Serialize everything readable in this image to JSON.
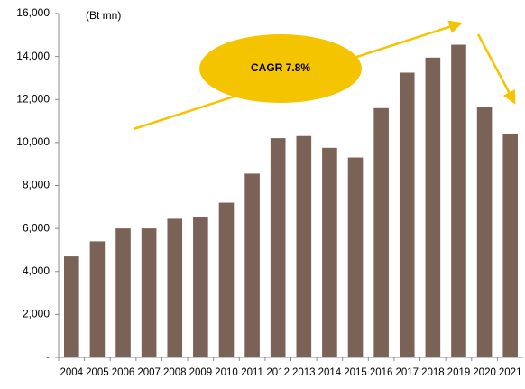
{
  "chart_data": {
    "type": "bar",
    "unit_label": "(Bt mn)",
    "annotation": "CAGR 7.8%",
    "categories": [
      "2004",
      "2005",
      "2006",
      "2007",
      "2008",
      "2009",
      "2010",
      "2011",
      "2012",
      "2013",
      "2014",
      "2015",
      "2016",
      "2017",
      "2018",
      "2019",
      "2020",
      "2021"
    ],
    "values": [
      4700,
      5400,
      6000,
      6000,
      6450,
      6550,
      7200,
      8550,
      10200,
      10300,
      9750,
      9300,
      11600,
      13250,
      13950,
      14550,
      11650,
      10400
    ],
    "color": "#7b6257",
    "ylim": [
      0,
      16000
    ],
    "yticks": [
      {
        "value": 0,
        "label": "-"
      },
      {
        "value": 2000,
        "label": "2,000"
      },
      {
        "value": 4000,
        "label": "4,000"
      },
      {
        "value": 6000,
        "label": "6,000"
      },
      {
        "value": 8000,
        "label": "8,000"
      },
      {
        "value": 10000,
        "label": "10,000"
      },
      {
        "value": 12000,
        "label": "12,000"
      },
      {
        "value": 14000,
        "label": "14,000"
      },
      {
        "value": 16000,
        "label": "16,000"
      }
    ],
    "grid": false
  }
}
